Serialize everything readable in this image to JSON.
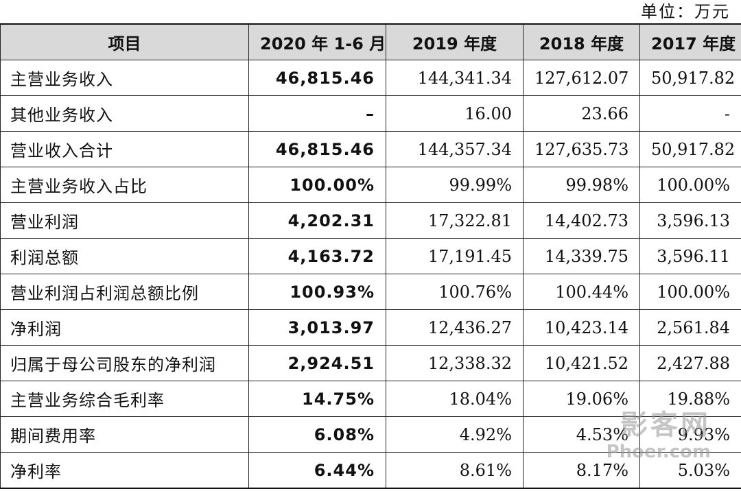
{
  "unit_label": "单位：万元",
  "headers": [
    "项目",
    "2020 年 1-6 月",
    "2019 年度",
    "2018 年度",
    "2017 年度"
  ],
  "rows": [
    {
      "label": "主营业务收入",
      "v2020h1": "46,815.46",
      "v2019": "144,341.34",
      "v2018": "127,612.07",
      "v2017": "50,917.82"
    },
    {
      "label": "其他业务收入",
      "v2020h1": "–",
      "v2019": "16.00",
      "v2018": "23.66",
      "v2017": "-"
    },
    {
      "label": "营业收入合计",
      "v2020h1": "46,815.46",
      "v2019": "144,357.34",
      "v2018": "127,635.73",
      "v2017": "50,917.82"
    },
    {
      "label": "主营业务收入占比",
      "v2020h1": "100.00%",
      "v2019": "99.99%",
      "v2018": "99.98%",
      "v2017": "100.00%"
    },
    {
      "label": "营业利润",
      "v2020h1": "4,202.31",
      "v2019": "17,322.81",
      "v2018": "14,402.73",
      "v2017": "3,596.13"
    },
    {
      "label": "利润总额",
      "v2020h1": "4,163.72",
      "v2019": "17,191.45",
      "v2018": "14,339.75",
      "v2017": "3,596.11"
    },
    {
      "label": "营业利润占利润总额比例",
      "v2020h1": "100.93%",
      "v2019": "100.76%",
      "v2018": "100.44%",
      "v2017": "100.00%"
    },
    {
      "label": "净利润",
      "v2020h1": "3,013.97",
      "v2019": "12,436.27",
      "v2018": "10,423.14",
      "v2017": "2,561.84"
    },
    {
      "label": "归属于母公司股东的净利润",
      "v2020h1": "2,924.51",
      "v2019": "12,338.32",
      "v2018": "10,421.52",
      "v2017": "2,427.88"
    },
    {
      "label": "主营业务综合毛利率",
      "v2020h1": "14.75%",
      "v2019": "18.04%",
      "v2018": "19.06%",
      "v2017": "19.88%"
    },
    {
      "label": "期间费用率",
      "v2020h1": "6.08%",
      "v2019": "4.92%",
      "v2018": "4.53%",
      "v2017": "9.93%"
    },
    {
      "label": "净利率",
      "v2020h1": "6.44%",
      "v2019": "8.61%",
      "v2018": "8.17%",
      "v2017": "5.03%"
    }
  ],
  "watermark": {
    "line1": "影客网",
    "line2": "Phoer.com"
  }
}
